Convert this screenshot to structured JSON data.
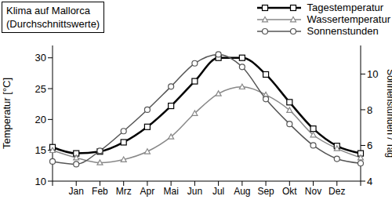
{
  "chart_data": {
    "type": "line",
    "title": "Klima auf Mallorca",
    "subtitle": "(Durchschnittswerte)",
    "y_label": "Temperatur [°C]",
    "y2_label": "Sonnenstunden / Tag",
    "categories": [
      null,
      "Jan",
      "Feb",
      "Mrz",
      "Apr",
      "Mai",
      "Jun",
      "Jul",
      "Aug",
      "Sep",
      "Okt",
      "Nov",
      "Dez",
      null
    ],
    "ylim": [
      10,
      32
    ],
    "yticks": [
      10,
      15,
      20,
      25,
      30
    ],
    "y2lim": [
      4,
      11.6
    ],
    "y2ticks": [
      4,
      6,
      8,
      10
    ],
    "grid": false,
    "legend": "top-right",
    "series": [
      {
        "name": "Tagestemperatur",
        "color": "#000000",
        "marker": "square",
        "line_style": "solid",
        "values": [
          15.5,
          14.5,
          14.8,
          16.3,
          18.8,
          22.2,
          26.2,
          30,
          30,
          27.3,
          22.8,
          18.5,
          15.7,
          14.5
        ]
      },
      {
        "name": "Wassertemperatur",
        "color": "#888888",
        "marker": "triangle",
        "line_style": "solid",
        "values": [
          15,
          13.8,
          13,
          13.5,
          14.8,
          17.2,
          21,
          24.2,
          25.3,
          24,
          21.5,
          17.5,
          15.3,
          13.8
        ]
      },
      {
        "name": "Sonnenstunden",
        "color": "#555555",
        "marker": "circle",
        "line_style": "solid",
        "axis": "y2",
        "values": [
          5.1,
          4.95,
          5.7,
          6.8,
          8.0,
          9.3,
          10.6,
          11.1,
          10.4,
          8.6,
          7.2,
          6.0,
          5.25,
          5.0
        ]
      }
    ]
  }
}
